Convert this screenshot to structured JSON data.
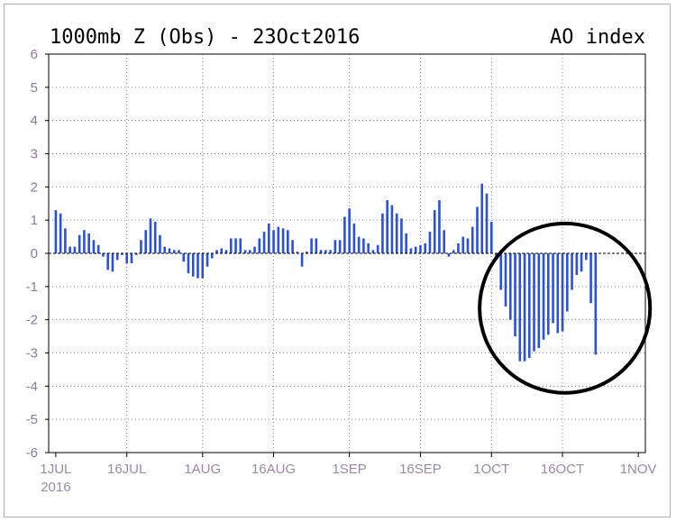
{
  "chart_data": {
    "type": "bar",
    "title": "1000mb Z (Obs) - 23Oct2016",
    "title_right": "AO index",
    "ylim": [
      -6,
      6
    ],
    "yticks": [
      6,
      5,
      4,
      3,
      2,
      1,
      0,
      -1,
      -2,
      -3,
      -4,
      -5,
      -6
    ],
    "xtick_labels": [
      "1JUL",
      "16JUL",
      "1AUG",
      "16AUG",
      "1SEP",
      "16SEP",
      "1OCT",
      "16OCT",
      "1NOV"
    ],
    "xtick_days": [
      0,
      15,
      31,
      46,
      62,
      77,
      92,
      107,
      123
    ],
    "x_year_label": "2016",
    "x_range_days": [
      -1.5,
      124.5
    ],
    "grid": true,
    "bar_color": "#2a50e0",
    "annotation": {
      "shape": "circle",
      "color": "#000000"
    },
    "days": [
      0,
      1,
      2,
      3,
      4,
      5,
      6,
      7,
      8,
      9,
      10,
      11,
      12,
      13,
      14,
      15,
      16,
      17,
      18,
      19,
      20,
      21,
      22,
      23,
      24,
      25,
      26,
      27,
      28,
      29,
      30,
      31,
      32,
      33,
      34,
      35,
      36,
      37,
      38,
      39,
      40,
      41,
      42,
      43,
      44,
      45,
      46,
      47,
      48,
      49,
      50,
      51,
      52,
      53,
      54,
      55,
      56,
      57,
      58,
      59,
      60,
      61,
      62,
      63,
      64,
      65,
      66,
      67,
      68,
      69,
      70,
      71,
      72,
      73,
      74,
      75,
      76,
      77,
      78,
      79,
      80,
      81,
      82,
      83,
      84,
      85,
      86,
      87,
      88,
      89,
      90,
      91,
      92,
      93,
      94,
      95,
      96,
      97,
      98,
      99,
      100,
      101,
      102,
      103,
      104,
      105,
      106,
      107,
      108,
      109,
      110,
      111,
      112,
      113,
      114
    ],
    "values": [
      1.3,
      1.2,
      0.75,
      0.2,
      0.2,
      0.55,
      0.7,
      0.6,
      0.4,
      0.25,
      -0.1,
      -0.5,
      -0.55,
      -0.2,
      -0.05,
      -0.3,
      -0.3,
      -0.05,
      0.4,
      0.7,
      1.05,
      0.95,
      0.55,
      0.2,
      0.15,
      0.1,
      0.1,
      -0.25,
      -0.6,
      -0.7,
      -0.75,
      -0.75,
      -0.4,
      -0.15,
      0.1,
      0.15,
      0.1,
      0.45,
      0.45,
      0.45,
      0.1,
      0.1,
      0.2,
      0.45,
      0.65,
      0.9,
      0.7,
      0.8,
      0.75,
      0.7,
      0.4,
      0.05,
      -0.4,
      0.05,
      0.45,
      0.45,
      0.1,
      0.1,
      0.1,
      0.4,
      0.4,
      1.1,
      1.35,
      0.9,
      0.5,
      0.45,
      0.3,
      0.1,
      0.25,
      1.2,
      1.6,
      1.45,
      1.2,
      1.05,
      0.6,
      0.15,
      0.2,
      0.25,
      0.3,
      0.65,
      1.3,
      1.6,
      0.7,
      -0.1,
      0.1,
      0.3,
      0.5,
      0.45,
      0.8,
      1.4,
      2.1,
      1.8,
      0.95,
      -0.2,
      -1.1,
      -1.6,
      -2.0,
      -2.5,
      -3.25,
      -3.25,
      -3.15,
      -2.95,
      -2.85,
      -2.6,
      -2.45,
      -2.1,
      -2.4,
      -2.35,
      -1.75,
      -1.1,
      -0.65,
      -0.55,
      -0.2,
      -1.5,
      -3.05
    ]
  }
}
